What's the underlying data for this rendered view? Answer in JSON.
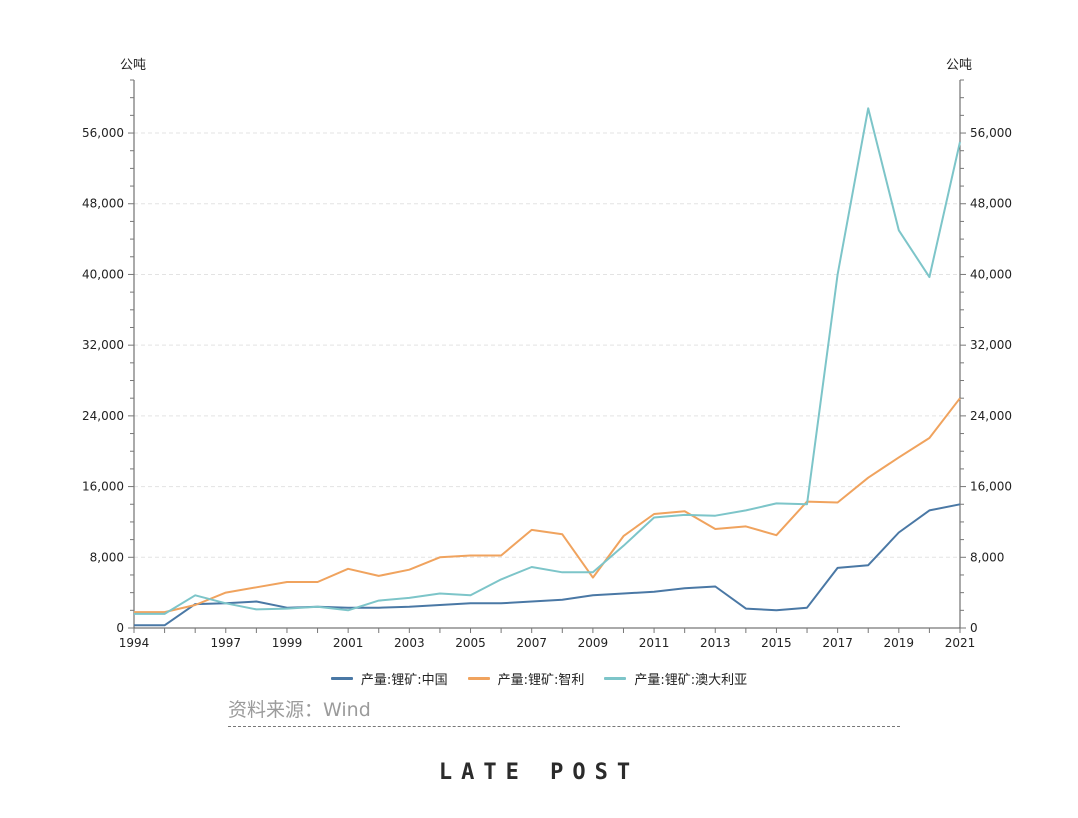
{
  "chart_data": {
    "type": "line",
    "y_unit_left": "公吨",
    "y_unit_right": "公吨",
    "x": [
      1994,
      1995,
      1996,
      1997,
      1998,
      1999,
      2000,
      2001,
      2002,
      2003,
      2004,
      2005,
      2006,
      2007,
      2008,
      2009,
      2010,
      2011,
      2012,
      2013,
      2014,
      2015,
      2016,
      2017,
      2018,
      2019,
      2020,
      2021
    ],
    "x_tick_labels": [
      "1994",
      "1997",
      "1999",
      "2001",
      "2003",
      "2005",
      "2007",
      "2009",
      "2011",
      "2013",
      "2015",
      "2017",
      "2019",
      "2021"
    ],
    "y_tick_labels": [
      "0",
      "8,000",
      "16,000",
      "24,000",
      "32,000",
      "40,000",
      "48,000",
      "56,000"
    ],
    "ylim": [
      0,
      62000
    ],
    "grid": "horizontal dashed",
    "legend_position": "bottom",
    "series": [
      {
        "name": "产量:锂矿:中国",
        "color": "#4a78a5",
        "values": [
          300,
          300,
          2700,
          2800,
          3000,
          2300,
          2400,
          2300,
          2300,
          2400,
          2600,
          2800,
          2800,
          3000,
          3200,
          3700,
          3900,
          4100,
          4500,
          4700,
          2200,
          2000,
          2300,
          6800,
          7100,
          10800,
          13300,
          14000
        ]
      },
      {
        "name": "产量:锂矿:智利",
        "color": "#f0a35e",
        "values": [
          1800,
          1800,
          2600,
          4000,
          4600,
          5200,
          5200,
          6700,
          5900,
          6600,
          8000,
          8200,
          8200,
          11100,
          10600,
          5700,
          10400,
          12900,
          13200,
          11200,
          11500,
          10500,
          14300,
          14200,
          17000,
          19300,
          21500,
          26000
        ]
      },
      {
        "name": "产量:锂矿:澳大利亚",
        "color": "#7dc5c9",
        "values": [
          1600,
          1600,
          3700,
          2800,
          2100,
          2200,
          2400,
          2000,
          3100,
          3400,
          3900,
          3700,
          5500,
          6900,
          6300,
          6300,
          9300,
          12500,
          12800,
          12700,
          13300,
          14100,
          14000,
          40000,
          58800,
          45000,
          39700,
          55000
        ]
      }
    ]
  },
  "source_text": "资料来源：Wind",
  "logo_text": "LATE POST"
}
